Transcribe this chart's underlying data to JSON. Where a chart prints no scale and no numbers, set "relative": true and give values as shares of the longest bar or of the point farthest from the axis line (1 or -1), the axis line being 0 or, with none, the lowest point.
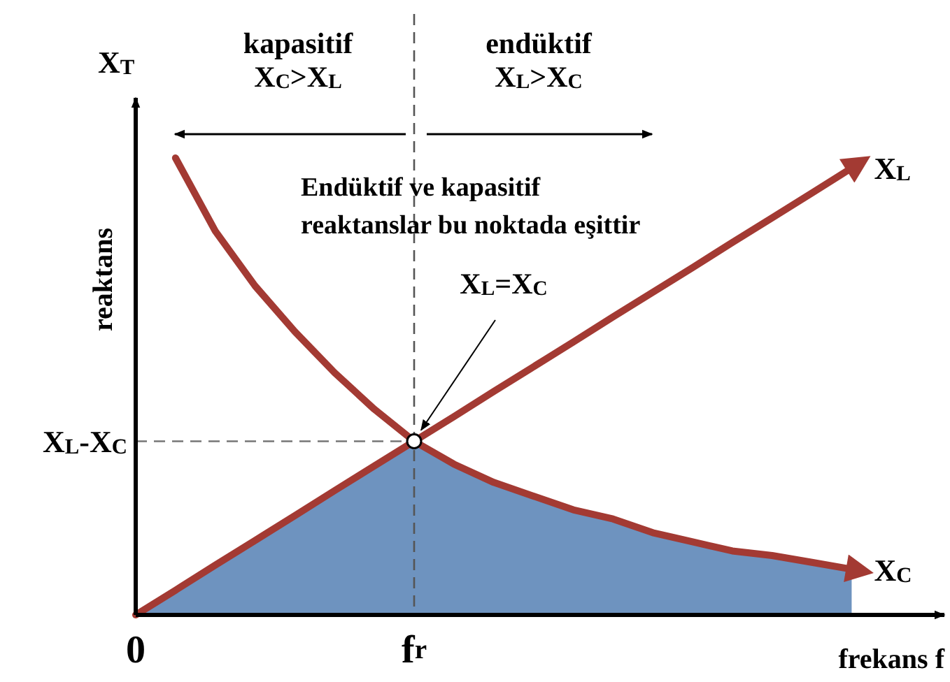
{
  "chart_data": {
    "type": "line",
    "relative": true,
    "xlabel": "frekans f",
    "ylabel": "reaktans",
    "categories": [
      "0",
      null,
      null,
      null,
      null,
      null,
      null,
      "f$_{r}$",
      null,
      null,
      null,
      null,
      null,
      null,
      null,
      null,
      null,
      null,
      null
    ],
    "tick_labels": "x",
    "line_style": "solid",
    "series": [
      {
        "type": "area",
        "color": "#6e93bf",
        "values": [
          0,
          0.054,
          0.109,
          0.163,
          0.217,
          0.272,
          0.326,
          0.38,
          0.33,
          0.29,
          0.26,
          0.23,
          0.21,
          0.18,
          0.16,
          0.14,
          0.13,
          0.115,
          0.1
        ]
      },
      {
        "name": "X$_{L}$",
        "color": "#a33a33",
        "values": [
          0,
          0.054,
          0.109,
          0.163,
          0.217,
          0.272,
          0.326,
          0.38,
          0.434,
          0.489,
          0.543,
          0.597,
          0.652,
          0.706,
          0.76,
          0.815,
          0.869,
          0.923,
          0.978
        ]
      },
      {
        "name": "X$_{C}$",
        "color": "#a33a33",
        "values": [
          null,
          1,
          0.84,
          0.72,
          0.62,
          0.53,
          0.45,
          0.38,
          0.33,
          0.29,
          0.26,
          0.23,
          0.21,
          0.18,
          0.16,
          0.14,
          0.13,
          0.115,
          0.1
        ]
      }
    ],
    "ref_lines": [
      {
        "axis": "x",
        "value": "f$_{r}$",
        "label": null,
        "line_style": "dashed",
        "color": "#555555"
      },
      {
        "axis": "y",
        "value": 0.38,
        "label": "X$_{L}$-X$_{C}$",
        "line_style": "dashed",
        "color": "#777777"
      }
    ],
    "annotations": [
      "kapasitif",
      "X$_{C}$>X$_{L}$",
      "endüktif",
      "X$_{L}$>X$_{C}$",
      "X$_{T}$",
      "Endüktif ve kapasitif reaktanslar bu noktada eşittir",
      "X$_{L}$=X$_{C}$"
    ]
  }
}
